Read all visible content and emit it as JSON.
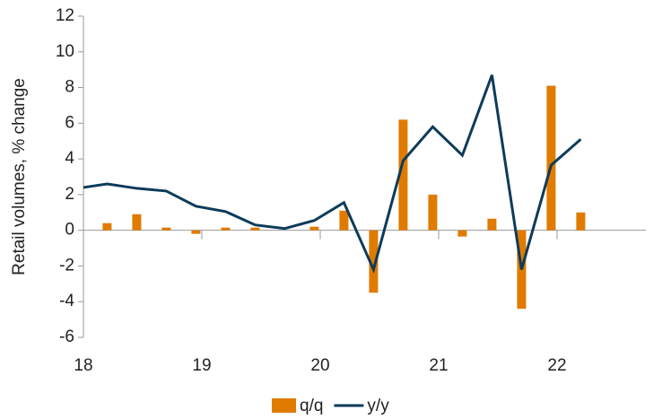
{
  "chart_data": {
    "type": "bar-line",
    "y_label": "Retail volumes, % change",
    "x": [
      2018.0,
      2018.2,
      2018.45,
      2018.7,
      2018.95,
      2019.2,
      2019.45,
      2019.7,
      2019.95,
      2020.2,
      2020.45,
      2020.7,
      2020.95,
      2021.2,
      2021.45,
      2021.7,
      2021.95,
      2022.2
    ],
    "series": [
      {
        "name": "q/q",
        "type": "bar",
        "color": "#e07b00",
        "values": [
          null,
          0.4,
          0.9,
          0.15,
          -0.2,
          0.15,
          0.15,
          0,
          0.2,
          1.1,
          -3.5,
          6.2,
          2.0,
          -0.35,
          0.65,
          -4.4,
          8.1,
          1.0
        ]
      },
      {
        "name": "y/y",
        "type": "line",
        "color": "#0d3b5a",
        "values": [
          2.4,
          2.6,
          2.35,
          2.2,
          1.35,
          1.05,
          0.3,
          0.1,
          0.55,
          1.55,
          -2.2,
          3.9,
          5.8,
          4.2,
          8.7,
          -2.2,
          3.65,
          5.1
        ]
      }
    ],
    "xlim": [
      2018,
      2022.75
    ],
    "xticks": [
      {
        "value": 2018,
        "label": "18"
      },
      {
        "value": 2019,
        "label": "19"
      },
      {
        "value": 2020,
        "label": "20"
      },
      {
        "value": 2021,
        "label": "21"
      },
      {
        "value": 2022,
        "label": "22"
      }
    ],
    "ylim": [
      -6,
      12
    ],
    "yticks": [
      -6,
      -4,
      -2,
      0,
      2,
      4,
      6,
      8,
      10,
      12
    ],
    "legend": "bottom"
  }
}
